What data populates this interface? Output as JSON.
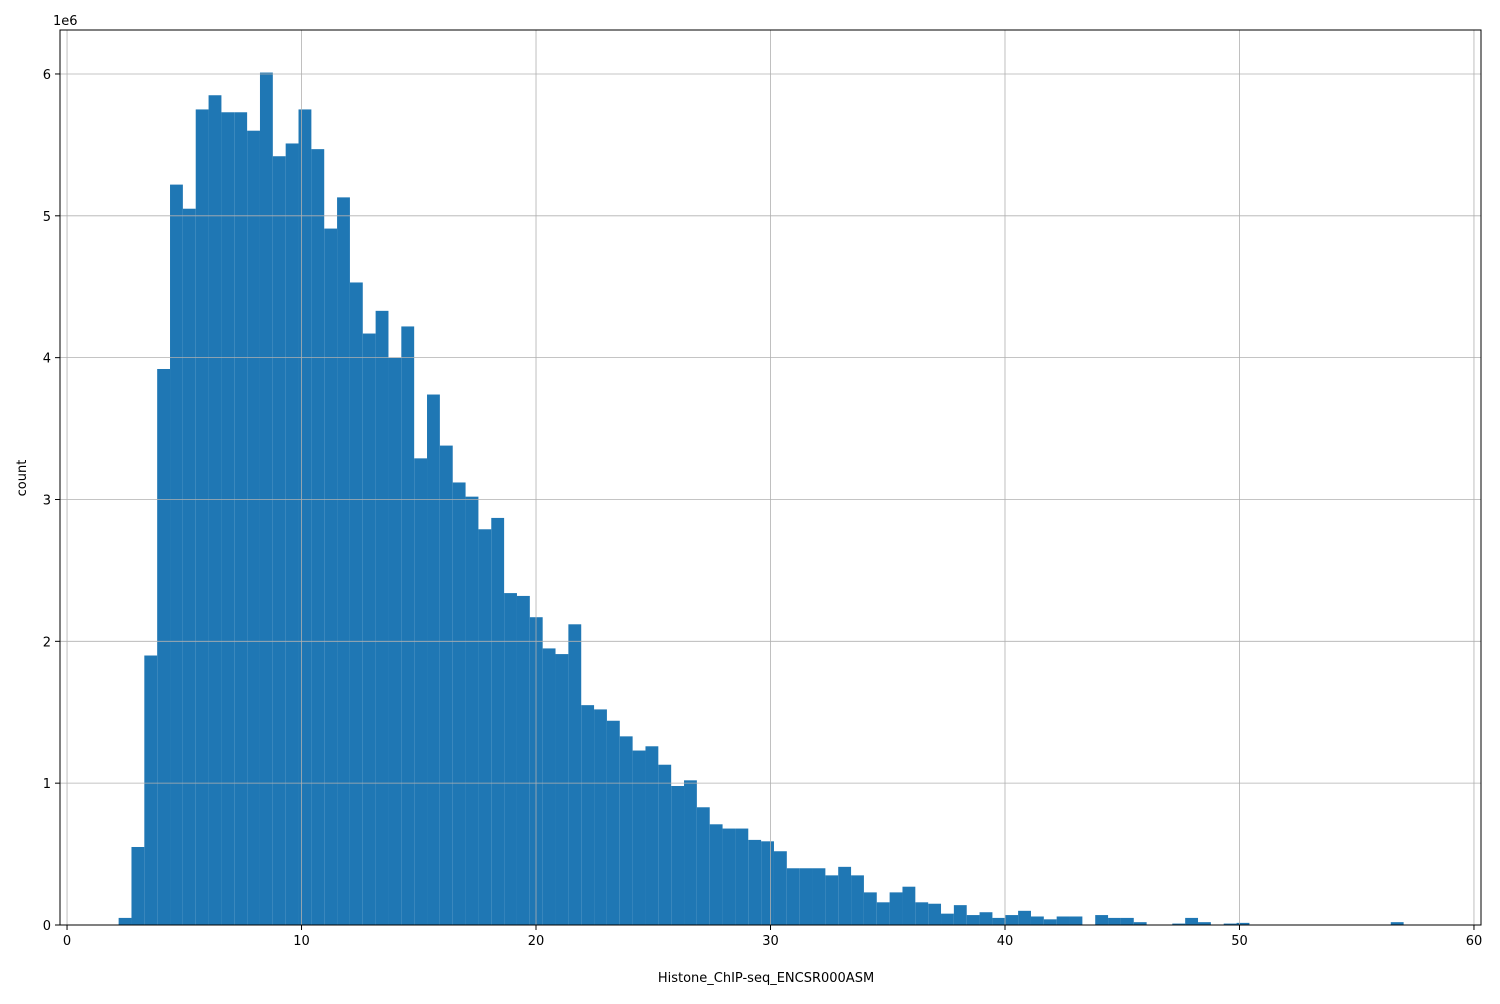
{
  "chart_data": {
    "type": "histogram",
    "x_label": "Histone_ChIP-seq_ENCSR000ASM",
    "y_label": "count",
    "y_offset_label": "1e6",
    "color": "#1f77b4",
    "grid": true,
    "xlim": [
      -0.3,
      60.3
    ],
    "ylim": [
      0,
      6.31
    ],
    "xticks": [
      0,
      10,
      20,
      30,
      40,
      50,
      60
    ],
    "yticks": [
      0,
      1,
      2,
      3,
      4,
      5,
      6
    ],
    "bins": [
      2.2,
      2.748,
      3.296,
      3.844,
      4.392,
      4.94,
      5.488,
      6.036,
      6.584,
      7.132,
      7.68,
      8.228,
      8.776,
      9.324,
      9.872,
      10.42,
      10.968,
      11.516,
      12.064,
      12.612,
      13.16,
      13.708,
      14.256,
      14.804,
      15.352,
      15.9,
      16.448,
      16.996,
      17.544,
      18.092,
      18.64,
      19.188,
      19.736,
      20.284,
      20.832,
      21.38,
      21.928,
      22.476,
      23.024,
      23.572,
      24.12,
      24.668,
      25.216,
      25.764,
      26.312,
      26.86,
      27.408,
      27.956,
      28.504,
      29.052,
      29.6,
      30.148,
      30.696,
      31.244,
      31.792,
      32.34,
      32.888,
      33.436,
      33.984,
      34.532,
      35.08,
      35.628,
      36.176,
      36.724,
      37.272,
      37.82,
      38.368,
      38.916,
      39.464,
      40.012,
      40.56,
      41.108,
      41.656,
      42.204,
      42.752,
      43.3,
      43.848,
      44.396,
      44.944,
      45.492,
      46.04,
      46.588,
      47.136,
      47.684,
      48.232,
      48.78,
      49.328,
      49.876,
      50.424,
      50.972,
      51.52,
      52.068,
      52.616,
      53.164,
      53.712,
      54.26,
      54.808,
      55.356,
      55.904,
      56.452,
      57.0
    ],
    "counts": [
      0.05,
      0.55,
      1.9,
      3.92,
      5.22,
      5.05,
      5.75,
      5.85,
      5.73,
      5.73,
      5.6,
      6.01,
      5.42,
      5.51,
      5.75,
      5.47,
      4.91,
      5.13,
      4.53,
      4.17,
      4.33,
      4.0,
      4.22,
      3.29,
      3.74,
      3.38,
      3.12,
      3.02,
      2.79,
      2.87,
      2.34,
      2.32,
      2.17,
      1.95,
      1.91,
      2.12,
      1.55,
      1.52,
      1.44,
      1.33,
      1.23,
      1.26,
      1.13,
      0.98,
      1.02,
      0.83,
      0.71,
      0.68,
      0.68,
      0.6,
      0.59,
      0.52,
      0.4,
      0.4,
      0.4,
      0.35,
      0.41,
      0.35,
      0.23,
      0.16,
      0.23,
      0.27,
      0.16,
      0.15,
      0.08,
      0.14,
      0.07,
      0.09,
      0.05,
      0.07,
      0.1,
      0.06,
      0.04,
      0.06,
      0.06,
      0,
      0.07,
      0.05,
      0.05,
      0.02,
      0,
      0,
      0.01,
      0.05,
      0.02,
      0,
      0.01,
      0.015,
      0,
      0,
      0,
      0,
      0,
      0,
      0,
      0,
      0,
      0,
      0,
      0.02
    ]
  }
}
